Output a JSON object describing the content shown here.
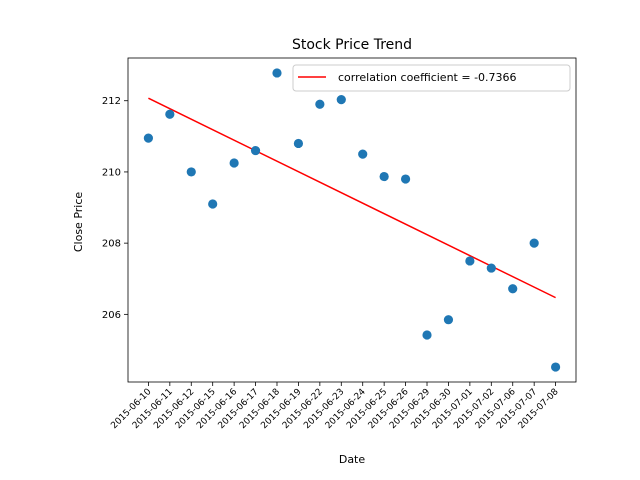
{
  "chart_data": {
    "type": "scatter",
    "title": "Stock Price Trend",
    "xlabel": "Date",
    "ylabel": "Close Price",
    "categories": [
      "2015-06-10",
      "2015-06-11",
      "2015-06-12",
      "2015-06-15",
      "2015-06-16",
      "2015-06-17",
      "2015-06-18",
      "2015-06-19",
      "2015-06-22",
      "2015-06-23",
      "2015-06-24",
      "2015-06-25",
      "2015-06-26",
      "2015-06-29",
      "2015-06-30",
      "2015-07-01",
      "2015-07-02",
      "2015-07-06",
      "2015-07-07",
      "2015-07-08"
    ],
    "values": [
      210.95,
      211.62,
      210.0,
      209.1,
      210.25,
      210.6,
      212.78,
      210.8,
      211.9,
      212.03,
      210.5,
      209.87,
      209.8,
      205.42,
      205.85,
      207.5,
      207.3,
      206.72,
      208.0,
      204.52
    ],
    "yticks": [
      206,
      208,
      210,
      212
    ],
    "ylim": [
      204.1,
      213.2
    ],
    "point_color": "#1f77b4",
    "trend_line": {
      "label": "correlation coefficient = -0.7366",
      "color": "#ff0000",
      "start_value": 212.07,
      "end_value": 206.47
    },
    "legend_position": "top-right",
    "grid": false
  }
}
